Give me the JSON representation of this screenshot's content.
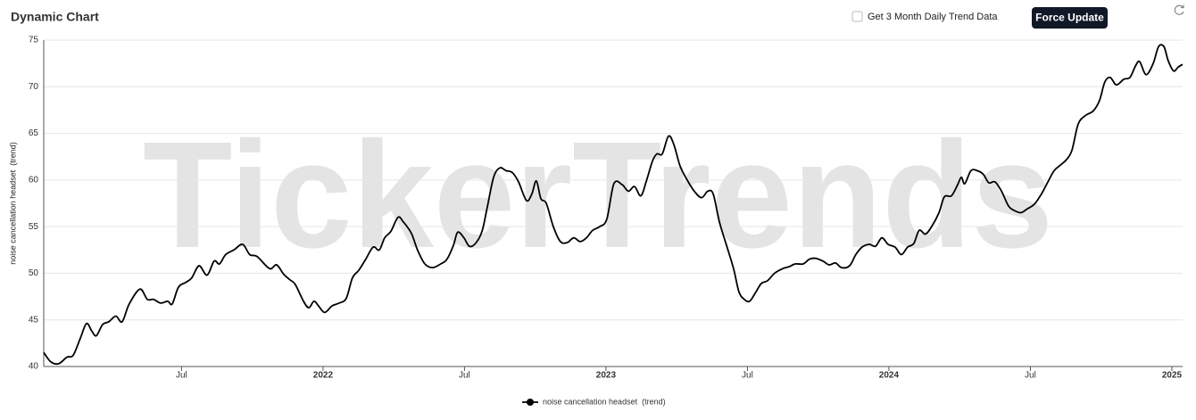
{
  "header": {
    "title": "Dynamic Chart",
    "checkbox_label": "Get 3 Month Daily Trend Data",
    "button_label": "Force Update"
  },
  "chart_data": {
    "type": "line",
    "watermark": "TickerTrends",
    "y_label": "noise cancellation headset  (trend)",
    "x": [
      2021.013,
      2021.038,
      2021.066,
      2021.095,
      2021.117,
      2021.142,
      2021.164,
      2021.183,
      2021.199,
      2021.221,
      2021.243,
      2021.268,
      2021.29,
      2021.315,
      2021.353,
      2021.379,
      2021.401,
      2021.426,
      2021.451,
      2021.467,
      2021.489,
      2021.514,
      2021.536,
      2021.562,
      2021.59,
      2021.615,
      2021.634,
      2021.656,
      2021.685,
      2021.716,
      2021.741,
      2021.767,
      2021.811,
      2021.836,
      2021.861,
      2021.883,
      2021.902,
      2021.931,
      2021.95,
      2021.968,
      2021.984,
      2022.006,
      2022.032,
      2022.057,
      2022.082,
      2022.104,
      2022.126,
      2022.151,
      2022.177,
      2022.199,
      2022.218,
      2022.24,
      2022.265,
      2022.284,
      2022.312,
      2022.334,
      2022.36,
      2022.388,
      2022.416,
      2022.438,
      2022.461,
      2022.476,
      2022.498,
      2022.517,
      2022.539,
      2022.562,
      2022.58,
      2022.603,
      2022.625,
      2022.647,
      2022.669,
      2022.691,
      2022.719,
      2022.738,
      2022.754,
      2022.77,
      2022.789,
      2022.814,
      2022.839,
      2022.864,
      2022.886,
      2022.909,
      2022.931,
      2022.953,
      2022.978,
      2023.003,
      2023.028,
      2023.057,
      2023.079,
      2023.101,
      2023.123,
      2023.142,
      2023.164,
      2023.18,
      2023.199,
      2023.221,
      2023.24,
      2023.262,
      2023.287,
      2023.312,
      2023.338,
      2023.36,
      2023.379,
      2023.401,
      2023.426,
      2023.451,
      2023.47,
      2023.489,
      2023.508,
      2023.53,
      2023.549,
      2023.571,
      2023.596,
      2023.625,
      2023.647,
      2023.669,
      2023.697,
      2023.719,
      2023.741,
      2023.767,
      2023.789,
      2023.811,
      2023.833,
      2023.861,
      2023.883,
      2023.905,
      2023.931,
      2023.953,
      2023.975,
      2023.997,
      2024.022,
      2024.044,
      2024.066,
      2024.088,
      2024.107,
      2024.129,
      2024.151,
      2024.177,
      2024.196,
      2024.221,
      2024.243,
      2024.256,
      2024.268,
      2024.29,
      2024.312,
      2024.334,
      2024.353,
      2024.375,
      2024.398,
      2024.423,
      2024.445,
      2024.467,
      2024.489,
      2024.514,
      2024.539,
      2024.562,
      2024.584,
      2024.606,
      2024.628,
      2024.647,
      2024.669,
      2024.694,
      2024.722,
      2024.744,
      2024.763,
      2024.782,
      2024.804,
      2024.83,
      2024.852,
      2024.871,
      2024.886,
      2024.909,
      2024.934,
      2024.953,
      2024.972,
      2024.987,
      2025.006,
      2025.022,
      2025.038
    ],
    "series": [
      {
        "name": "noise cancellation headset  (trend)",
        "color": "#000000",
        "values": [
          41.5,
          40.5,
          40.3,
          41,
          41.2,
          43,
          44.6,
          43.8,
          43.3,
          44.5,
          44.8,
          45.4,
          44.8,
          46.7,
          48.3,
          47.2,
          47.2,
          46.8,
          47,
          46.7,
          48.5,
          49,
          49.5,
          50.8,
          49.8,
          51.3,
          51,
          52,
          52.5,
          53.1,
          52,
          51.8,
          50.5,
          50.9,
          49.9,
          49.3,
          48.8,
          47,
          46.3,
          47,
          46.5,
          45.8,
          46.5,
          46.8,
          47.3,
          49.5,
          50.3,
          51.5,
          52.8,
          52.5,
          53.8,
          54.5,
          56,
          55.5,
          54.3,
          52.5,
          51,
          50.6,
          51,
          51.5,
          53,
          54.4,
          53.8,
          52.9,
          53.2,
          54.5,
          57,
          60.3,
          61.3,
          61,
          60.8,
          59.8,
          57.8,
          58.5,
          59.9,
          58,
          57.5,
          55,
          53.4,
          53.3,
          53.8,
          53.4,
          53.8,
          54.6,
          55,
          55.8,
          59.6,
          59.5,
          58.8,
          59.3,
          58.3,
          59.8,
          62,
          62.8,
          62.8,
          64.7,
          63.8,
          61.5,
          60,
          58.8,
          58.1,
          58.8,
          58.5,
          55.5,
          53,
          50.5,
          48,
          47.2,
          47,
          48,
          48.9,
          49.2,
          50,
          50.5,
          50.7,
          51,
          51,
          51.5,
          51.6,
          51.3,
          50.9,
          51.1,
          50.6,
          50.8,
          52,
          52.8,
          53.1,
          52.9,
          53.8,
          53.1,
          52.8,
          52,
          52.8,
          53.2,
          54.6,
          54.2,
          55,
          56.5,
          58.2,
          58.3,
          59.5,
          60.3,
          59.6,
          61,
          61,
          60.6,
          59.7,
          59.8,
          58.8,
          57.2,
          56.7,
          56.5,
          56.9,
          57.4,
          58.5,
          59.8,
          61,
          61.6,
          62.2,
          63.2,
          66,
          66.9,
          67.4,
          68.5,
          70.5,
          71,
          70.2,
          70.8,
          71,
          72.2,
          72.7,
          71.3,
          72.5,
          74.3,
          74.3,
          72.8,
          71.7,
          72.1,
          72.4
        ]
      }
    ],
    "xlim": [
      2021.013,
      2025.038
    ],
    "xticks": [
      {
        "value": 2021.5,
        "label": "Jul"
      },
      2022,
      {
        "value": 2022.5,
        "label": "Jul"
      },
      2023,
      {
        "value": 2023.5,
        "label": "Jul"
      },
      2024,
      {
        "value": 2024.5,
        "label": "Jul"
      },
      2025
    ],
    "ylim": [
      40,
      75
    ],
    "yticks": [
      40,
      45,
      50,
      55,
      60,
      65,
      70,
      75
    ],
    "grid": true,
    "legend": "bottom"
  }
}
